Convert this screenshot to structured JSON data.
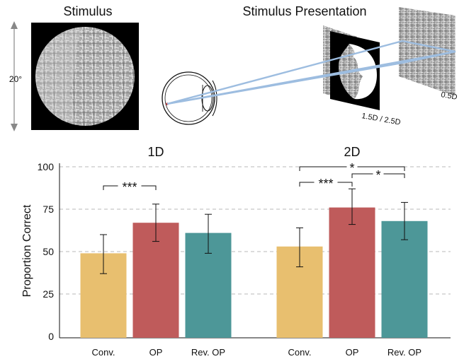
{
  "stimulus": {
    "title": "Stimulus",
    "extent_label": "20°"
  },
  "presentation": {
    "title": "Stimulus Presentation",
    "near_label": "1.5D / 2.5D",
    "far_label": "0.5D"
  },
  "colors": {
    "conv": "#e8bf6f",
    "op": "#bf5b5b",
    "rev_op": "#4d9798",
    "ray": "#9dbde0"
  },
  "chart_data": [
    {
      "type": "bar",
      "title": "1D",
      "ylabel": "Proportion Correct",
      "ylim": [
        0,
        100
      ],
      "yticks": [
        0,
        25,
        50,
        75,
        100
      ],
      "grid": true,
      "categories": [
        "Conv.",
        "OP",
        "Rev. OP"
      ],
      "values": [
        49,
        67,
        61
      ],
      "error": [
        [
          37,
          60
        ],
        [
          56,
          78
        ],
        [
          49,
          72
        ]
      ],
      "significance": [
        {
          "from": 0,
          "to": 1,
          "label": "***"
        }
      ]
    },
    {
      "type": "bar",
      "title": "2D",
      "ylim": [
        0,
        100
      ],
      "grid": true,
      "categories": [
        "Conv.",
        "OP",
        "Rev. OP"
      ],
      "values": [
        53,
        76,
        68
      ],
      "error": [
        [
          41,
          64
        ],
        [
          66,
          87
        ],
        [
          57,
          79
        ]
      ],
      "significance": [
        {
          "from": 0,
          "to": 1,
          "label": "***"
        },
        {
          "from": 1,
          "to": 2,
          "label": "*"
        },
        {
          "from": 0,
          "to": 2,
          "label": "*"
        }
      ]
    }
  ]
}
